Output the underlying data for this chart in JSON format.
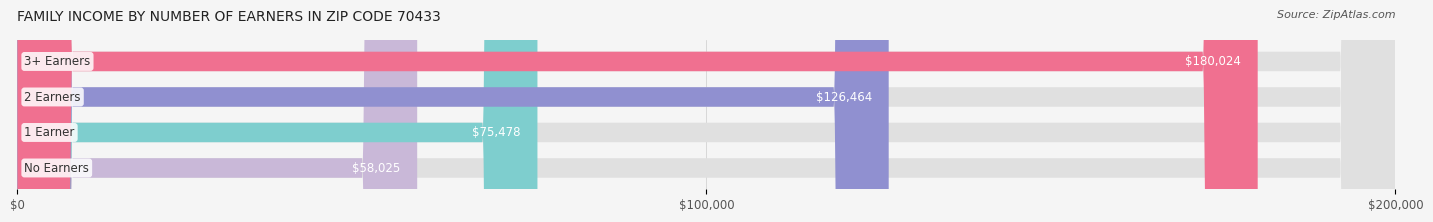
{
  "title": "FAMILY INCOME BY NUMBER OF EARNERS IN ZIP CODE 70433",
  "source": "Source: ZipAtlas.com",
  "categories": [
    "No Earners",
    "1 Earner",
    "2 Earners",
    "3+ Earners"
  ],
  "values": [
    58025,
    75478,
    126464,
    180024
  ],
  "value_labels": [
    "$58,025",
    "$75,478",
    "$126,464",
    "$180,024"
  ],
  "bar_colors": [
    "#c9b8d8",
    "#7ecece",
    "#9090d0",
    "#f07090"
  ],
  "bar_bg_color": "#e8e8e8",
  "label_bg_color": "#ffffff",
  "x_max": 200000,
  "x_ticks": [
    0,
    100000,
    200000
  ],
  "x_tick_labels": [
    "$0",
    "$100,000",
    "$200,000"
  ],
  "background_color": "#f5f5f5",
  "title_fontsize": 10,
  "source_fontsize": 8,
  "bar_label_fontsize": 8.5,
  "category_fontsize": 8.5,
  "value_label_color": "#ffffff",
  "category_label_color": "#555555"
}
